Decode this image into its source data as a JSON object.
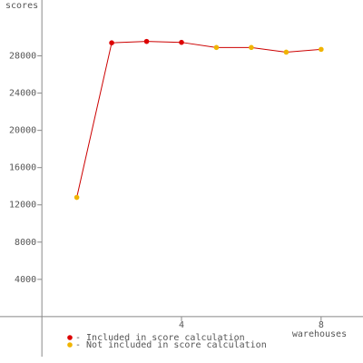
{
  "chart_data": {
    "type": "line",
    "y_label": "scores",
    "x_label": "warehouses",
    "x": [
      1,
      2,
      3,
      4,
      5,
      6,
      7,
      8
    ],
    "series": [
      {
        "name": "scores",
        "color": "#cc0000",
        "values": [
          12800,
          29400,
          29550,
          29450,
          28900,
          28900,
          28400,
          28700
        ]
      }
    ],
    "point_colors": [
      "#f0b400",
      "#dd0000",
      "#dd0000",
      "#dd0000",
      "#f0b400",
      "#f0b400",
      "#f0b400",
      "#f0b400"
    ],
    "legend": [
      {
        "name": "- Included in score calculation",
        "color": "#dd0000"
      },
      {
        "name": "- Not included in score calculation",
        "color": "#f0b400"
      }
    ],
    "xlim": [
      -1.2,
      9.2
    ],
    "ylim": [
      -4300,
      34000
    ],
    "xticks": [
      4,
      8
    ],
    "yticks": [
      4000,
      8000,
      12000,
      16000,
      20000,
      24000,
      28000
    ]
  }
}
